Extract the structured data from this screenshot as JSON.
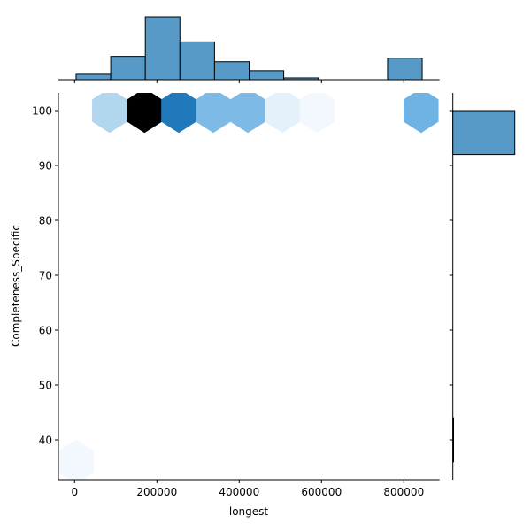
{
  "chart_data": {
    "type": "hexbin-jointplot",
    "title": "",
    "xlabel": "longest",
    "ylabel": "Completeness_Specific",
    "xlim": [
      -40000,
      880000
    ],
    "ylim": [
      33.3,
      103.1
    ],
    "x_ticks": [
      0,
      200000,
      400000,
      600000,
      800000
    ],
    "x_tick_labels": [
      "0",
      "200000",
      "400000",
      "600000",
      "800000"
    ],
    "y_ticks": [
      40,
      50,
      60,
      70,
      80,
      90,
      100
    ],
    "y_tick_labels": [
      "40",
      "50",
      "60",
      "70",
      "80",
      "90",
      "100"
    ],
    "grid": false,
    "legend": null,
    "hexbins": [
      {
        "x": 85000,
        "y": 100,
        "count": 3,
        "color": "#b3d6ef"
      },
      {
        "x": 170000,
        "y": 100,
        "count": 35,
        "color": "#000000"
      },
      {
        "x": 253000,
        "y": 100,
        "count": 21,
        "color": "#2079ba"
      },
      {
        "x": 337000,
        "y": 100,
        "count": 13,
        "color": "#7dbbe6"
      },
      {
        "x": 421000,
        "y": 100,
        "count": 13,
        "color": "#7dbbe6"
      },
      {
        "x": 505000,
        "y": 100,
        "count": 2,
        "color": "#e4f1fb"
      },
      {
        "x": 589000,
        "y": 100,
        "count": 1,
        "color": "#f2f8fd"
      },
      {
        "x": 842000,
        "y": 100,
        "count": 12,
        "color": "#6eb3e4"
      },
      {
        "x": 4000,
        "y": 36,
        "count": 1,
        "color": "#f2f8fd"
      }
    ],
    "marginal_x_histogram": {
      "bin_edges": [
        3600,
        87700,
        171800,
        255900,
        340000,
        424100,
        508200,
        592300,
        676400,
        760500,
        844600
      ],
      "counts": [
        3,
        13,
        35,
        21,
        10,
        5,
        1,
        0,
        0,
        12
      ],
      "color": "#5799c7"
    },
    "marginal_y_histogram": {
      "bins": [
        {
          "y0": 92,
          "y1": 100,
          "count": 99
        },
        {
          "y0": 36,
          "y1": 44,
          "count": 1
        }
      ],
      "color": "#5799c7"
    }
  }
}
